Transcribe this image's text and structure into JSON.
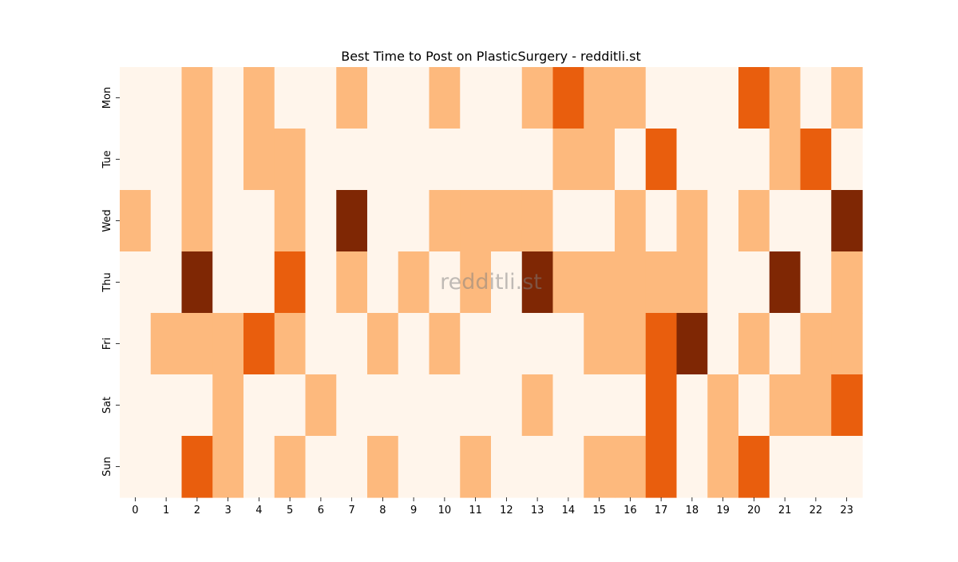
{
  "chart_data": {
    "type": "heatmap",
    "title": "Best Time to Post on PlasticSurgery - redditli.st",
    "xlabel": "",
    "ylabel": "",
    "x": [
      "0",
      "1",
      "2",
      "3",
      "4",
      "5",
      "6",
      "7",
      "8",
      "9",
      "10",
      "11",
      "12",
      "13",
      "14",
      "15",
      "16",
      "17",
      "18",
      "19",
      "20",
      "21",
      "22",
      "23"
    ],
    "y": [
      "Mon",
      "Tue",
      "Wed",
      "Thu",
      "Fri",
      "Sat",
      "Sun"
    ],
    "levels": [
      0,
      1,
      2,
      3
    ],
    "values": [
      [
        0,
        0,
        1,
        0,
        1,
        0,
        0,
        1,
        0,
        0,
        1,
        0,
        0,
        1,
        2,
        1,
        1,
        0,
        0,
        0,
        2,
        1,
        0,
        1
      ],
      [
        0,
        0,
        1,
        0,
        1,
        1,
        0,
        0,
        0,
        0,
        0,
        0,
        0,
        0,
        1,
        1,
        0,
        2,
        0,
        0,
        0,
        1,
        2,
        0
      ],
      [
        1,
        0,
        1,
        0,
        0,
        1,
        0,
        3,
        0,
        0,
        1,
        1,
        1,
        1,
        0,
        0,
        1,
        0,
        1,
        0,
        1,
        0,
        0,
        3
      ],
      [
        0,
        0,
        3,
        0,
        0,
        2,
        0,
        1,
        0,
        1,
        0,
        1,
        0,
        3,
        1,
        1,
        1,
        1,
        1,
        0,
        0,
        3,
        0,
        1
      ],
      [
        0,
        1,
        1,
        1,
        2,
        1,
        0,
        0,
        1,
        0,
        1,
        0,
        0,
        0,
        0,
        1,
        1,
        2,
        3,
        0,
        1,
        0,
        1,
        1
      ],
      [
        0,
        0,
        0,
        1,
        0,
        0,
        1,
        0,
        0,
        0,
        0,
        0,
        0,
        1,
        0,
        0,
        0,
        2,
        0,
        1,
        0,
        1,
        1,
        2
      ],
      [
        0,
        0,
        2,
        1,
        0,
        1,
        0,
        0,
        1,
        0,
        0,
        1,
        0,
        0,
        0,
        1,
        1,
        2,
        0,
        1,
        2,
        0,
        0,
        0
      ]
    ],
    "colors": [
      "#fff5eb",
      "#fdb97d",
      "#e95e0d",
      "#7f2704"
    ],
    "watermark": "redditli.st",
    "legend": "none",
    "grid": false
  }
}
